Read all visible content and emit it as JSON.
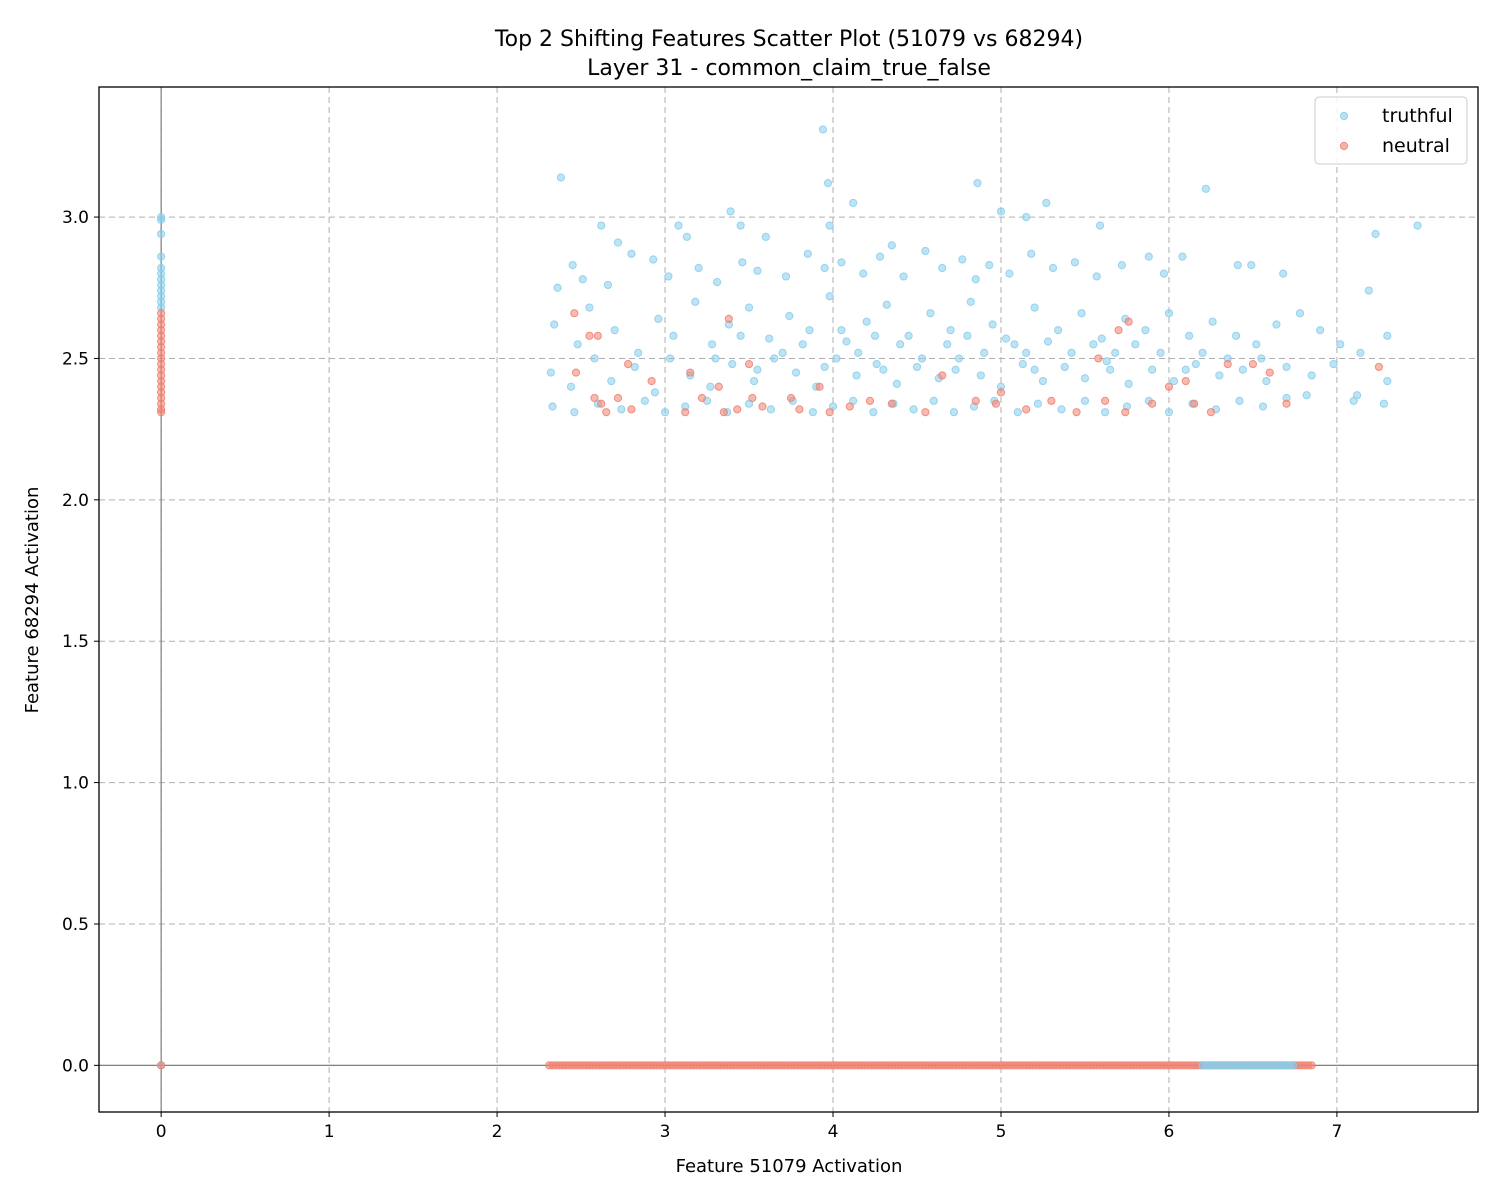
{
  "chart_data": {
    "type": "scatter",
    "title": "Top 2 Shifting Features Scatter Plot (51079 vs 68294)",
    "subtitle": "Layer 31 - common_claim_true_false",
    "xlabel": "Feature 51079 Activation",
    "ylabel": "Feature 68294 Activation",
    "xlim": [
      -0.37,
      7.84
    ],
    "ylim": [
      -0.165,
      3.46
    ],
    "xticks": [
      0,
      1,
      2,
      3,
      4,
      5,
      6,
      7
    ],
    "yticks": [
      0.0,
      0.5,
      1.0,
      1.5,
      2.0,
      2.5,
      3.0
    ],
    "xtick_labels": [
      "0",
      "1",
      "2",
      "3",
      "4",
      "5",
      "6",
      "7"
    ],
    "ytick_labels": [
      "0.0",
      "0.5",
      "1.0",
      "1.5",
      "2.0",
      "2.5",
      "3.0"
    ],
    "grid": true,
    "reference_lines": {
      "x": 0,
      "y": 0
    },
    "legend_position": "top-right",
    "series": [
      {
        "name": "truthful",
        "color": "#87CEEB",
        "points": [
          [
            0,
            3.0
          ],
          [
            0,
            2.99
          ],
          [
            0,
            2.94
          ],
          [
            0,
            2.86
          ],
          [
            0,
            2.82
          ],
          [
            0,
            2.8
          ],
          [
            0,
            2.78
          ],
          [
            0,
            2.76
          ],
          [
            0,
            2.74
          ],
          [
            0,
            2.72
          ],
          [
            0,
            2.7
          ],
          [
            0,
            2.68
          ],
          [
            0,
            0.0
          ],
          [
            2.38,
            3.14
          ],
          [
            2.62,
            2.97
          ],
          [
            2.72,
            2.91
          ],
          [
            3.08,
            2.97
          ],
          [
            3.13,
            2.93
          ],
          [
            3.39,
            3.02
          ],
          [
            3.45,
            2.97
          ],
          [
            3.6,
            2.93
          ],
          [
            3.94,
            3.31
          ],
          [
            3.97,
            3.12
          ],
          [
            3.98,
            2.97
          ],
          [
            4.12,
            3.05
          ],
          [
            4.35,
            2.9
          ],
          [
            4.86,
            3.12
          ],
          [
            5.0,
            3.02
          ],
          [
            5.15,
            3.0
          ],
          [
            5.27,
            3.05
          ],
          [
            5.59,
            2.97
          ],
          [
            6.22,
            3.1
          ],
          [
            7.23,
            2.94
          ],
          [
            7.48,
            2.97
          ],
          [
            2.36,
            2.75
          ],
          [
            2.45,
            2.83
          ],
          [
            2.51,
            2.78
          ],
          [
            2.66,
            2.76
          ],
          [
            2.8,
            2.87
          ],
          [
            2.93,
            2.85
          ],
          [
            3.02,
            2.79
          ],
          [
            3.2,
            2.82
          ],
          [
            3.31,
            2.77
          ],
          [
            3.46,
            2.84
          ],
          [
            3.55,
            2.81
          ],
          [
            3.72,
            2.79
          ],
          [
            3.85,
            2.87
          ],
          [
            3.95,
            2.82
          ],
          [
            4.05,
            2.84
          ],
          [
            4.18,
            2.8
          ],
          [
            4.28,
            2.86
          ],
          [
            4.42,
            2.79
          ],
          [
            4.55,
            2.88
          ],
          [
            4.65,
            2.82
          ],
          [
            4.77,
            2.85
          ],
          [
            4.85,
            2.78
          ],
          [
            4.93,
            2.83
          ],
          [
            5.05,
            2.8
          ],
          [
            5.18,
            2.87
          ],
          [
            5.31,
            2.82
          ],
          [
            5.44,
            2.84
          ],
          [
            5.57,
            2.79
          ],
          [
            5.72,
            2.83
          ],
          [
            5.88,
            2.86
          ],
          [
            5.97,
            2.8
          ],
          [
            6.08,
            2.86
          ],
          [
            6.41,
            2.83
          ],
          [
            6.49,
            2.83
          ],
          [
            6.68,
            2.8
          ],
          [
            7.19,
            2.74
          ],
          [
            2.34,
            2.62
          ],
          [
            2.48,
            2.55
          ],
          [
            2.55,
            2.68
          ],
          [
            2.7,
            2.6
          ],
          [
            2.84,
            2.52
          ],
          [
            2.96,
            2.64
          ],
          [
            3.05,
            2.58
          ],
          [
            3.18,
            2.7
          ],
          [
            3.28,
            2.55
          ],
          [
            3.38,
            2.62
          ],
          [
            3.5,
            2.68
          ],
          [
            3.62,
            2.57
          ],
          [
            3.74,
            2.65
          ],
          [
            3.86,
            2.6
          ],
          [
            3.98,
            2.72
          ],
          [
            4.08,
            2.56
          ],
          [
            4.2,
            2.63
          ],
          [
            4.32,
            2.69
          ],
          [
            4.45,
            2.58
          ],
          [
            4.58,
            2.66
          ],
          [
            4.7,
            2.6
          ],
          [
            4.82,
            2.7
          ],
          [
            4.95,
            2.62
          ],
          [
            5.08,
            2.55
          ],
          [
            5.2,
            2.68
          ],
          [
            5.34,
            2.6
          ],
          [
            5.48,
            2.66
          ],
          [
            5.6,
            2.57
          ],
          [
            5.74,
            2.64
          ],
          [
            5.86,
            2.6
          ],
          [
            6.0,
            2.66
          ],
          [
            6.12,
            2.58
          ],
          [
            6.26,
            2.63
          ],
          [
            6.4,
            2.58
          ],
          [
            6.52,
            2.55
          ],
          [
            6.64,
            2.62
          ],
          [
            6.78,
            2.66
          ],
          [
            6.9,
            2.6
          ],
          [
            7.02,
            2.55
          ],
          [
            7.14,
            2.52
          ],
          [
            7.3,
            2.58
          ],
          [
            2.32,
            2.45
          ],
          [
            2.44,
            2.4
          ],
          [
            2.58,
            2.5
          ],
          [
            2.68,
            2.42
          ],
          [
            2.82,
            2.47
          ],
          [
            2.94,
            2.38
          ],
          [
            3.03,
            2.5
          ],
          [
            3.15,
            2.44
          ],
          [
            3.27,
            2.4
          ],
          [
            3.4,
            2.48
          ],
          [
            3.53,
            2.42
          ],
          [
            3.65,
            2.5
          ],
          [
            3.78,
            2.45
          ],
          [
            3.9,
            2.4
          ],
          [
            4.02,
            2.5
          ],
          [
            4.14,
            2.44
          ],
          [
            4.26,
            2.48
          ],
          [
            4.38,
            2.41
          ],
          [
            4.5,
            2.47
          ],
          [
            4.63,
            2.43
          ],
          [
            4.75,
            2.5
          ],
          [
            4.88,
            2.44
          ],
          [
            5.0,
            2.4
          ],
          [
            5.13,
            2.48
          ],
          [
            5.25,
            2.42
          ],
          [
            5.38,
            2.47
          ],
          [
            5.5,
            2.43
          ],
          [
            5.63,
            2.49
          ],
          [
            5.76,
            2.41
          ],
          [
            5.9,
            2.46
          ],
          [
            6.03,
            2.42
          ],
          [
            6.16,
            2.48
          ],
          [
            6.3,
            2.44
          ],
          [
            6.44,
            2.46
          ],
          [
            6.58,
            2.42
          ],
          [
            6.7,
            2.47
          ],
          [
            6.85,
            2.44
          ],
          [
            6.98,
            2.48
          ],
          [
            7.12,
            2.37
          ],
          [
            7.3,
            2.42
          ],
          [
            2.33,
            2.33
          ],
          [
            2.46,
            2.31
          ],
          [
            2.6,
            2.34
          ],
          [
            2.74,
            2.32
          ],
          [
            2.88,
            2.35
          ],
          [
            3.0,
            2.31
          ],
          [
            3.12,
            2.33
          ],
          [
            3.25,
            2.35
          ],
          [
            3.37,
            2.31
          ],
          [
            3.5,
            2.34
          ],
          [
            3.63,
            2.32
          ],
          [
            3.76,
            2.35
          ],
          [
            3.88,
            2.31
          ],
          [
            4.0,
            2.33
          ],
          [
            4.12,
            2.35
          ],
          [
            4.24,
            2.31
          ],
          [
            4.36,
            2.34
          ],
          [
            4.48,
            2.32
          ],
          [
            4.6,
            2.35
          ],
          [
            4.72,
            2.31
          ],
          [
            4.84,
            2.33
          ],
          [
            4.96,
            2.35
          ],
          [
            5.1,
            2.31
          ],
          [
            5.22,
            2.34
          ],
          [
            5.36,
            2.32
          ],
          [
            5.5,
            2.35
          ],
          [
            5.62,
            2.31
          ],
          [
            5.75,
            2.33
          ],
          [
            5.88,
            2.35
          ],
          [
            6.0,
            2.31
          ],
          [
            6.14,
            2.34
          ],
          [
            6.28,
            2.32
          ],
          [
            6.42,
            2.35
          ],
          [
            6.56,
            2.33
          ],
          [
            6.7,
            2.36
          ],
          [
            6.82,
            2.37
          ],
          [
            7.1,
            2.35
          ],
          [
            7.28,
            2.34
          ],
          [
            3.3,
            2.5
          ],
          [
            3.45,
            2.58
          ],
          [
            3.7,
            2.52
          ],
          [
            3.82,
            2.55
          ],
          [
            4.05,
            2.6
          ],
          [
            4.15,
            2.52
          ],
          [
            4.25,
            2.58
          ],
          [
            4.4,
            2.55
          ],
          [
            4.53,
            2.5
          ],
          [
            4.68,
            2.55
          ],
          [
            4.8,
            2.58
          ],
          [
            4.9,
            2.52
          ],
          [
            5.03,
            2.57
          ],
          [
            5.15,
            2.52
          ],
          [
            5.28,
            2.56
          ],
          [
            5.42,
            2.52
          ],
          [
            5.55,
            2.55
          ],
          [
            5.68,
            2.52
          ],
          [
            5.8,
            2.55
          ],
          [
            5.95,
            2.52
          ],
          [
            3.55,
            2.46
          ],
          [
            3.95,
            2.47
          ],
          [
            4.3,
            2.46
          ],
          [
            4.73,
            2.46
          ],
          [
            5.2,
            2.46
          ],
          [
            5.65,
            2.46
          ],
          [
            6.1,
            2.46
          ],
          [
            6.2,
            2.52
          ],
          [
            6.35,
            2.5
          ],
          [
            6.55,
            2.5
          ]
        ]
      },
      {
        "name": "neutral",
        "color": "#F08070",
        "points": [
          [
            0,
            2.66
          ],
          [
            0,
            2.64
          ],
          [
            0,
            2.62
          ],
          [
            0,
            2.6
          ],
          [
            0,
            2.58
          ],
          [
            0,
            2.56
          ],
          [
            0,
            2.54
          ],
          [
            0,
            2.52
          ],
          [
            0,
            2.5
          ],
          [
            0,
            2.48
          ],
          [
            0,
            2.46
          ],
          [
            0,
            2.44
          ],
          [
            0,
            2.42
          ],
          [
            0,
            2.4
          ],
          [
            0,
            2.38
          ],
          [
            0,
            2.36
          ],
          [
            0,
            2.34
          ],
          [
            0,
            2.32
          ],
          [
            0,
            2.31
          ],
          [
            0,
            0.0
          ],
          [
            2.46,
            2.66
          ],
          [
            2.47,
            2.45
          ],
          [
            2.55,
            2.58
          ],
          [
            2.58,
            2.36
          ],
          [
            2.6,
            2.58
          ],
          [
            2.62,
            2.34
          ],
          [
            2.65,
            2.31
          ],
          [
            2.72,
            2.36
          ],
          [
            2.78,
            2.48
          ],
          [
            2.8,
            2.32
          ],
          [
            2.92,
            2.42
          ],
          [
            3.12,
            2.31
          ],
          [
            3.15,
            2.45
          ],
          [
            3.22,
            2.36
          ],
          [
            3.32,
            2.4
          ],
          [
            3.35,
            2.31
          ],
          [
            3.38,
            2.64
          ],
          [
            3.43,
            2.32
          ],
          [
            3.5,
            2.48
          ],
          [
            3.52,
            2.36
          ],
          [
            3.58,
            2.33
          ],
          [
            3.75,
            2.36
          ],
          [
            3.8,
            2.32
          ],
          [
            3.92,
            2.4
          ],
          [
            3.98,
            2.31
          ],
          [
            4.1,
            2.33
          ],
          [
            4.22,
            2.35
          ],
          [
            4.35,
            2.34
          ],
          [
            4.55,
            2.31
          ],
          [
            4.65,
            2.44
          ],
          [
            4.85,
            2.35
          ],
          [
            4.97,
            2.34
          ],
          [
            5.0,
            2.38
          ],
          [
            5.15,
            2.32
          ],
          [
            5.3,
            2.35
          ],
          [
            5.45,
            2.31
          ],
          [
            5.58,
            2.5
          ],
          [
            5.62,
            2.35
          ],
          [
            5.7,
            2.6
          ],
          [
            5.74,
            2.31
          ],
          [
            5.76,
            2.63
          ],
          [
            5.9,
            2.34
          ],
          [
            6.0,
            2.4
          ],
          [
            6.1,
            2.42
          ],
          [
            6.15,
            2.34
          ],
          [
            6.25,
            2.31
          ],
          [
            6.35,
            2.48
          ],
          [
            6.5,
            2.48
          ],
          [
            6.6,
            2.45
          ],
          [
            6.7,
            2.34
          ],
          [
            7.25,
            2.47
          ]
        ]
      }
    ],
    "lines_at_zero": [
      {
        "name": "neutral",
        "color": "#F08070",
        "y": 0.0,
        "x_range": [
          2.31,
          6.85
        ]
      },
      {
        "name": "truthful",
        "color": "#87CEEB",
        "y": 0.0,
        "x_range": [
          6.2,
          6.75
        ]
      }
    ]
  }
}
